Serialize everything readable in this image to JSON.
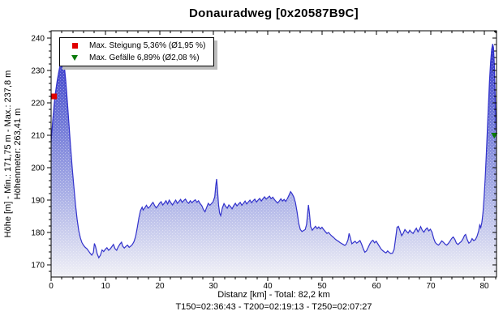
{
  "title": "Donauradweg [0x20587B9C]",
  "legend": {
    "items": [
      {
        "marker": "red-square",
        "color": "#e00000",
        "label": "Max. Steigung 5,36% (Ø1,95 %)"
      },
      {
        "marker": "green-triangle-down",
        "color": "#0a7a0a",
        "label": "Max. Gefälle 6,89% (Ø2,08 %)"
      }
    ]
  },
  "y_axis": {
    "title_line1": "Höhe [m] - Min.: 171,75 m - Max.: 237,8 m",
    "title_line2": "Höhenmeter: 263,41 m"
  },
  "x_axis": {
    "title": "Distanz [km] - Total: 82,2 km"
  },
  "footer": "T150=02:36:43 - T200=02:19:13 - T250=02:07:27",
  "chart_data": {
    "type": "area",
    "title": "Donauradweg [0x20587B9C]",
    "xlabel": "Distanz [km] - Total: 82,2 km",
    "ylabel": "Höhe [m] - Min.: 171,75 m - Max.: 237,8 m | Höhenmeter: 263,41 m",
    "total_km": "82,2 km",
    "min_elevation_m": 171.75,
    "max_elevation_m": 237.8,
    "climb_m": 263.41,
    "xlim": [
      0,
      82.2
    ],
    "ylim": [
      166.25,
      242.25
    ],
    "x_major_ticks": [
      0,
      10,
      20,
      30,
      40,
      50,
      60,
      70,
      80
    ],
    "x_minor_step": 2,
    "y_major_ticks": [
      170,
      180,
      190,
      200,
      210,
      220,
      230,
      240
    ],
    "y_minor_step": 2,
    "grid": false,
    "legend_position": "top-left",
    "line_color": "#3232cc",
    "gradient": [
      "#2828c6",
      "#6a72d6",
      "#aab0e6",
      "#f1f1f6"
    ],
    "markers": [
      {
        "shape": "square",
        "color": "#e00000",
        "x": 0.55,
        "y": 222,
        "meaning": "Max. Steigung 5,36%"
      },
      {
        "shape": "triangle-down",
        "color": "#0a7a0a",
        "x": 81.8,
        "y": 210,
        "meaning": "Max. Gefälle 6,89%"
      }
    ],
    "points": [
      [
        0,
        208
      ],
      [
        0.3,
        214.5
      ],
      [
        0.55,
        219.5
      ],
      [
        0.8,
        223
      ],
      [
        1.1,
        226.5
      ],
      [
        1.4,
        229.5
      ],
      [
        1.7,
        232
      ],
      [
        2,
        234.5
      ],
      [
        2.2,
        234
      ],
      [
        2.45,
        231
      ],
      [
        2.7,
        227
      ],
      [
        3,
        220.5
      ],
      [
        3.3,
        213.5
      ],
      [
        3.6,
        206.5
      ],
      [
        3.9,
        200
      ],
      [
        4.2,
        194
      ],
      [
        4.5,
        188.5
      ],
      [
        4.8,
        184
      ],
      [
        5.1,
        180.5
      ],
      [
        5.4,
        178.3
      ],
      [
        5.7,
        176.8
      ],
      [
        6,
        176
      ],
      [
        6.3,
        175.4
      ],
      [
        6.6,
        175
      ],
      [
        6.9,
        174.3
      ],
      [
        7.2,
        173.6
      ],
      [
        7.5,
        173
      ],
      [
        7.8,
        173.8
      ],
      [
        8,
        176.6
      ],
      [
        8.2,
        175.6
      ],
      [
        8.5,
        173.4
      ],
      [
        8.8,
        172.2
      ],
      [
        9.1,
        173
      ],
      [
        9.4,
        174.6
      ],
      [
        9.7,
        174.1
      ],
      [
        10,
        174.8
      ],
      [
        10.3,
        175.3
      ],
      [
        10.6,
        174.5
      ],
      [
        10.9,
        174.9
      ],
      [
        11.2,
        175.6
      ],
      [
        11.5,
        176.3
      ],
      [
        11.8,
        175
      ],
      [
        12.1,
        174.5
      ],
      [
        12.4,
        175.6
      ],
      [
        12.7,
        176.4
      ],
      [
        13,
        177
      ],
      [
        13.2,
        175.8
      ],
      [
        13.5,
        175.2
      ],
      [
        13.8,
        175.7
      ],
      [
        14.1,
        176.1
      ],
      [
        14.4,
        175.4
      ],
      [
        14.7,
        175.8
      ],
      [
        15,
        176.3
      ],
      [
        15.3,
        177.2
      ],
      [
        15.6,
        178.8
      ],
      [
        15.9,
        181.5
      ],
      [
        16.2,
        184.5
      ],
      [
        16.5,
        186.8
      ],
      [
        16.8,
        187.8
      ],
      [
        17,
        186.9
      ],
      [
        17.3,
        187.6
      ],
      [
        17.6,
        188.4
      ],
      [
        17.9,
        187.5
      ],
      [
        18.2,
        187.9
      ],
      [
        18.5,
        188.7
      ],
      [
        18.8,
        189.3
      ],
      [
        19.1,
        188.3
      ],
      [
        19.4,
        187.6
      ],
      [
        19.7,
        188.2
      ],
      [
        20,
        189
      ],
      [
        20.3,
        189.5
      ],
      [
        20.6,
        188.5
      ],
      [
        20.9,
        189.1
      ],
      [
        21.2,
        189.8
      ],
      [
        21.5,
        188.8
      ],
      [
        21.8,
        190
      ],
      [
        22.1,
        189.2
      ],
      [
        22.4,
        188.5
      ],
      [
        22.7,
        189.3
      ],
      [
        23,
        190
      ],
      [
        23.3,
        189
      ],
      [
        23.6,
        189.6
      ],
      [
        23.9,
        190.2
      ],
      [
        24.2,
        189.3
      ],
      [
        24.5,
        189.9
      ],
      [
        24.8,
        190.3
      ],
      [
        25.1,
        189.4
      ],
      [
        25.4,
        189
      ],
      [
        25.7,
        189.8
      ],
      [
        26,
        189.2
      ],
      [
        26.3,
        189.7
      ],
      [
        26.6,
        190.1
      ],
      [
        26.9,
        189.3
      ],
      [
        27.2,
        189.8
      ],
      [
        27.5,
        188.9
      ],
      [
        27.8,
        188.3
      ],
      [
        28.1,
        187.1
      ],
      [
        28.4,
        186.4
      ],
      [
        28.7,
        187.7
      ],
      [
        29,
        189
      ],
      [
        29.3,
        188.4
      ],
      [
        29.6,
        188.9
      ],
      [
        29.9,
        189.5
      ],
      [
        30.2,
        191
      ],
      [
        30.4,
        194.5
      ],
      [
        30.55,
        196.5
      ],
      [
        30.7,
        193.5
      ],
      [
        30.9,
        188.5
      ],
      [
        31.1,
        186
      ],
      [
        31.3,
        185.2
      ],
      [
        31.6,
        187.6
      ],
      [
        31.9,
        188.9
      ],
      [
        32.2,
        188.1
      ],
      [
        32.5,
        187.5
      ],
      [
        32.8,
        188.5
      ],
      [
        33.1,
        188
      ],
      [
        33.4,
        187.3
      ],
      [
        33.7,
        188.3
      ],
      [
        34,
        189
      ],
      [
        34.3,
        188.2
      ],
      [
        34.6,
        188.8
      ],
      [
        34.9,
        189.3
      ],
      [
        35.2,
        188.4
      ],
      [
        35.5,
        189
      ],
      [
        35.8,
        189.7
      ],
      [
        36.1,
        188.8
      ],
      [
        36.4,
        189.4
      ],
      [
        36.7,
        190
      ],
      [
        37,
        189.2
      ],
      [
        37.3,
        189.8
      ],
      [
        37.6,
        190.3
      ],
      [
        37.9,
        189.4
      ],
      [
        38.2,
        190
      ],
      [
        38.5,
        190.5
      ],
      [
        38.8,
        189.7
      ],
      [
        39.1,
        190.4
      ],
      [
        39.4,
        191
      ],
      [
        39.7,
        190.3
      ],
      [
        40,
        190.8
      ],
      [
        40.3,
        191.2
      ],
      [
        40.6,
        190.4
      ],
      [
        40.9,
        190.9
      ],
      [
        41.2,
        190.2
      ],
      [
        41.5,
        189.6
      ],
      [
        41.8,
        189.1
      ],
      [
        42.1,
        189.7
      ],
      [
        42.4,
        190.4
      ],
      [
        42.7,
        189.7
      ],
      [
        43,
        190.2
      ],
      [
        43.3,
        189.6
      ],
      [
        43.6,
        190.4
      ],
      [
        43.9,
        191.5
      ],
      [
        44.2,
        192.6
      ],
      [
        44.5,
        191.9
      ],
      [
        44.8,
        190.9
      ],
      [
        45.1,
        189.2
      ],
      [
        45.4,
        186.3
      ],
      [
        45.7,
        182.8
      ],
      [
        46,
        180.9
      ],
      [
        46.3,
        180.3
      ],
      [
        46.6,
        180.6
      ],
      [
        46.9,
        180.9
      ],
      [
        47.15,
        182.5
      ],
      [
        47.35,
        186
      ],
      [
        47.5,
        188.5
      ],
      [
        47.7,
        185.5
      ],
      [
        47.9,
        181.8
      ],
      [
        48.2,
        180.7
      ],
      [
        48.5,
        181.3
      ],
      [
        48.8,
        181.9
      ],
      [
        49.1,
        181.2
      ],
      [
        49.4,
        181.7
      ],
      [
        49.7,
        181.1
      ],
      [
        50,
        181.6
      ],
      [
        50.3,
        180.9
      ],
      [
        50.6,
        180.3
      ],
      [
        50.9,
        179.7
      ],
      [
        51.2,
        180
      ],
      [
        51.5,
        179.4
      ],
      [
        51.8,
        178.9
      ],
      [
        52.1,
        178.5
      ],
      [
        52.4,
        178
      ],
      [
        52.7,
        177.6
      ],
      [
        53,
        177.3
      ],
      [
        53.3,
        176.9
      ],
      [
        53.6,
        176.6
      ],
      [
        53.9,
        176.3
      ],
      [
        54.2,
        176
      ],
      [
        54.5,
        176.5
      ],
      [
        54.8,
        177.8
      ],
      [
        55,
        179.7
      ],
      [
        55.2,
        178.5
      ],
      [
        55.5,
        176.5
      ],
      [
        55.8,
        176.9
      ],
      [
        56.1,
        177.3
      ],
      [
        56.4,
        176.7
      ],
      [
        56.7,
        177.1
      ],
      [
        57,
        177.5
      ],
      [
        57.3,
        176.4
      ],
      [
        57.6,
        175
      ],
      [
        57.9,
        173.9
      ],
      [
        58.2,
        174.3
      ],
      [
        58.5,
        175.3
      ],
      [
        58.8,
        176.4
      ],
      [
        59.1,
        177.2
      ],
      [
        59.4,
        177.6
      ],
      [
        59.7,
        176.8
      ],
      [
        60,
        177.3
      ],
      [
        60.3,
        176.5
      ],
      [
        60.6,
        175.7
      ],
      [
        60.9,
        174.9
      ],
      [
        61.2,
        174.4
      ],
      [
        61.5,
        174
      ],
      [
        61.8,
        173.7
      ],
      [
        62.1,
        174.3
      ],
      [
        62.4,
        173.8
      ],
      [
        62.7,
        173.5
      ],
      [
        63,
        173.6
      ],
      [
        63.3,
        174.8
      ],
      [
        63.6,
        178.5
      ],
      [
        63.85,
        181.6
      ],
      [
        64.1,
        181.9
      ],
      [
        64.4,
        180.5
      ],
      [
        64.7,
        179
      ],
      [
        65,
        179.8
      ],
      [
        65.3,
        180.9
      ],
      [
        65.6,
        180.3
      ],
      [
        65.9,
        179.8
      ],
      [
        66.2,
        180.7
      ],
      [
        66.5,
        180.1
      ],
      [
        66.8,
        179.7
      ],
      [
        67.1,
        180.5
      ],
      [
        67.4,
        181.3
      ],
      [
        67.7,
        180.2
      ],
      [
        68,
        181
      ],
      [
        68.2,
        181.8
      ],
      [
        68.5,
        180.7
      ],
      [
        68.8,
        180.1
      ],
      [
        69.1,
        180.9
      ],
      [
        69.4,
        181.4
      ],
      [
        69.7,
        180.5
      ],
      [
        70,
        181
      ],
      [
        70.3,
        180.1
      ],
      [
        70.6,
        178.2
      ],
      [
        70.9,
        176.9
      ],
      [
        71.2,
        176.4
      ],
      [
        71.5,
        176.1
      ],
      [
        71.8,
        176.7
      ],
      [
        72.1,
        177.4
      ],
      [
        72.4,
        177
      ],
      [
        72.7,
        176.4
      ],
      [
        73,
        176.1
      ],
      [
        73.3,
        176.6
      ],
      [
        73.6,
        177.3
      ],
      [
        73.9,
        178.1
      ],
      [
        74.2,
        178.6
      ],
      [
        74.5,
        177.9
      ],
      [
        74.8,
        176.7
      ],
      [
        75.1,
        176.3
      ],
      [
        75.4,
        176.8
      ],
      [
        75.7,
        177.2
      ],
      [
        76,
        178
      ],
      [
        76.3,
        179.1
      ],
      [
        76.5,
        179.4
      ],
      [
        76.8,
        177.8
      ],
      [
        77.1,
        176.7
      ],
      [
        77.4,
        177.1
      ],
      [
        77.7,
        178.1
      ],
      [
        78,
        177.5
      ],
      [
        78.3,
        177.8
      ],
      [
        78.6,
        178.8
      ],
      [
        78.9,
        180.5
      ],
      [
        79.1,
        182.3
      ],
      [
        79.3,
        181.5
      ],
      [
        79.5,
        183.2
      ],
      [
        79.7,
        186
      ],
      [
        79.9,
        190.5
      ],
      [
        80.1,
        196.5
      ],
      [
        80.3,
        203.5
      ],
      [
        80.5,
        211
      ],
      [
        80.7,
        219
      ],
      [
        80.9,
        226.5
      ],
      [
        81.1,
        232.5
      ],
      [
        81.3,
        236.5
      ],
      [
        81.5,
        238.2
      ],
      [
        81.65,
        237
      ],
      [
        81.8,
        232
      ],
      [
        81.95,
        222.5
      ],
      [
        82.1,
        212.5
      ],
      [
        82.2,
        210
      ]
    ]
  }
}
